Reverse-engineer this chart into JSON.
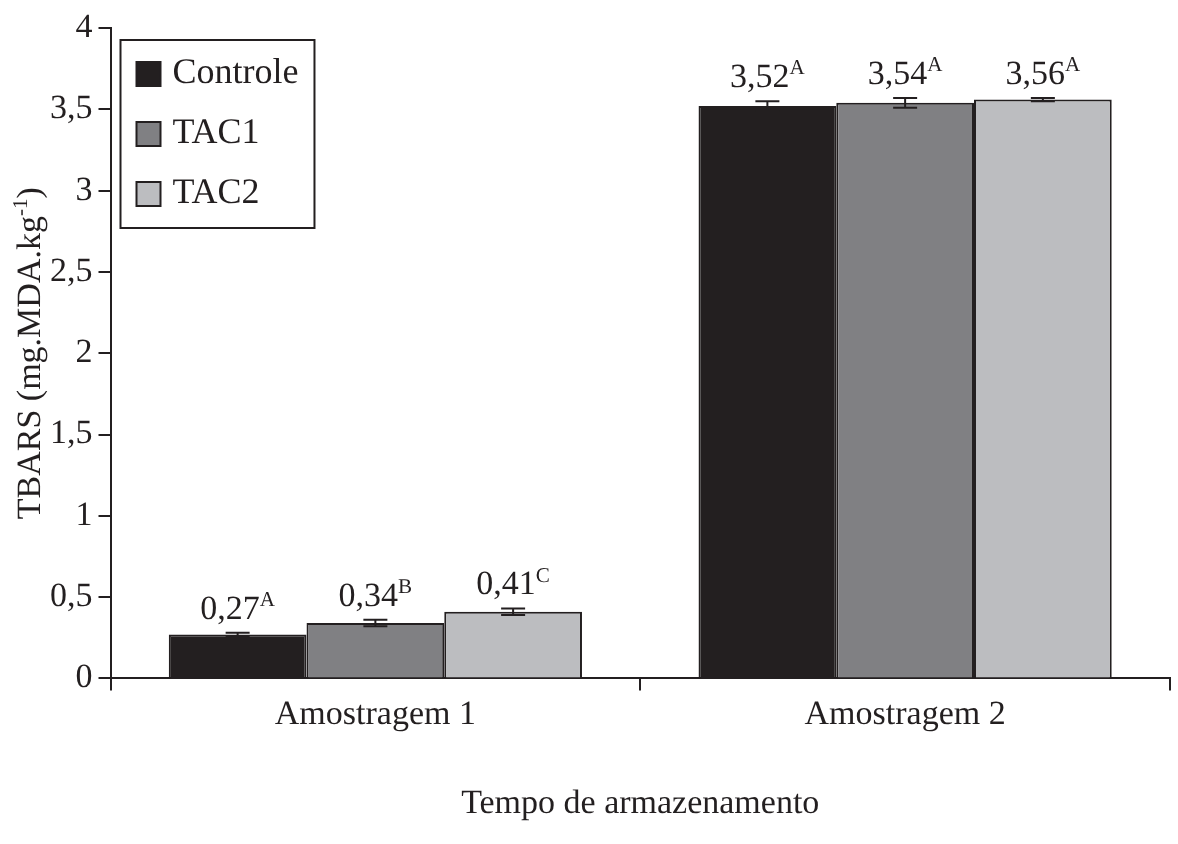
{
  "chart_data": {
    "type": "bar",
    "xlabel": "Tempo de armazenamento",
    "ylabel": "TBARS (mg.MDA.kg$^{-1}$)",
    "categories": [
      "Amostragem 1",
      "Amostragem 2"
    ],
    "series": [
      {
        "name": "Controle",
        "color": "#231f20",
        "values": [
          0.27,
          3.52
        ],
        "errors": [
          0.01,
          0.03
        ],
        "value_labels": [
          "0,27$^{A}$",
          "3,52$^{A}$"
        ]
      },
      {
        "name": "TAC1",
        "color": "#808083",
        "values": [
          0.34,
          3.54
        ],
        "errors": [
          0.02,
          0.03
        ],
        "value_labels": [
          "0,34$^{B}$",
          "3,54$^{A}$"
        ]
      },
      {
        "name": "TAC2",
        "color": "#bcbdc0",
        "values": [
          0.41,
          3.56
        ],
        "errors": [
          0.02,
          0.01
        ],
        "value_labels": [
          "0,41$^{C}$",
          "3,56$^{A}$"
        ]
      }
    ],
    "ylim": [
      0,
      4
    ],
    "yticks": [
      0,
      {
        "value": 0.5,
        "label": "0,5"
      },
      1,
      {
        "value": 1.5,
        "label": "1,5"
      },
      2,
      {
        "value": 2.5,
        "label": "2,5"
      },
      3,
      {
        "value": 3.5,
        "label": "3,5"
      },
      4
    ],
    "grid": false,
    "legend": "top left"
  }
}
